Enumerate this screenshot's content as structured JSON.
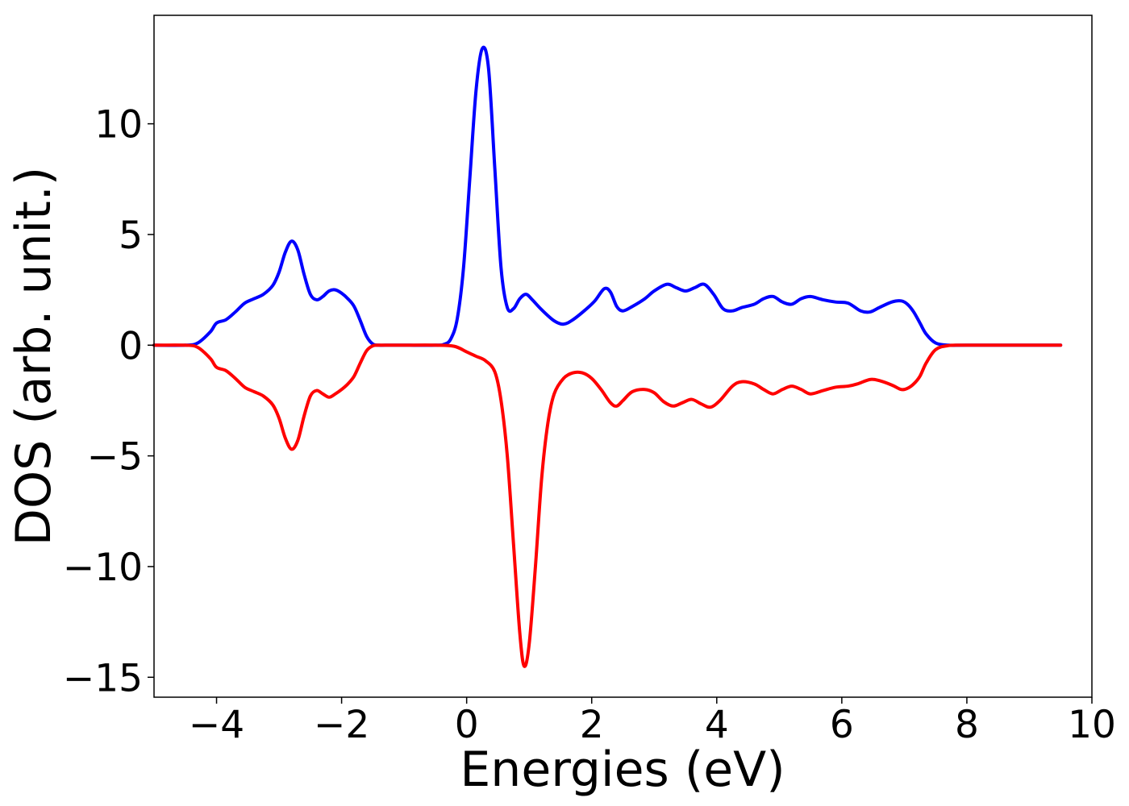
{
  "chart_data": {
    "type": "line",
    "title": "",
    "xlabel": "Energies (eV)",
    "ylabel": "DOS (arb. unit.)",
    "xlim": [
      -5,
      10
    ],
    "ylim": [
      -15.9,
      14.9
    ],
    "xticks": [
      -4,
      -2,
      0,
      2,
      4,
      6,
      8,
      10
    ],
    "xtick_labels": [
      "−4",
      "−2",
      "0",
      "2",
      "4",
      "6",
      "8",
      "10"
    ],
    "yticks": [
      10,
      5,
      0,
      -5,
      -10,
      -15
    ],
    "ytick_labels": [
      "10",
      "5",
      "0",
      "−5",
      "−10",
      "−15"
    ],
    "grid": false,
    "series": [
      {
        "color": "#0000ff",
        "x": [
          -5.0,
          -4.5,
          -4.3,
          -4.1,
          -4.0,
          -3.85,
          -3.7,
          -3.55,
          -3.4,
          -3.25,
          -3.1,
          -3.0,
          -2.9,
          -2.8,
          -2.7,
          -2.6,
          -2.5,
          -2.4,
          -2.3,
          -2.2,
          -2.1,
          -2.0,
          -1.9,
          -1.8,
          -1.7,
          -1.6,
          -1.5,
          -1.4,
          -1.3,
          -1.0,
          -0.5,
          -0.35,
          -0.25,
          -0.15,
          -0.05,
          0.05,
          0.15,
          0.25,
          0.35,
          0.45,
          0.55,
          0.65,
          0.75,
          0.85,
          0.95,
          1.05,
          1.2,
          1.4,
          1.55,
          1.7,
          1.9,
          2.05,
          2.2,
          2.3,
          2.4,
          2.5,
          2.65,
          2.85,
          3.0,
          3.2,
          3.35,
          3.5,
          3.65,
          3.8,
          3.95,
          4.1,
          4.25,
          4.4,
          4.6,
          4.75,
          4.9,
          5.05,
          5.2,
          5.35,
          5.5,
          5.7,
          5.9,
          6.1,
          6.3,
          6.45,
          6.6,
          6.8,
          6.95,
          7.05,
          7.15,
          7.25,
          7.35,
          7.5,
          7.7,
          8.0,
          9.0,
          9.5
        ],
        "y": [
          0.0,
          0.0,
          0.1,
          0.6,
          1.0,
          1.15,
          1.5,
          1.9,
          2.1,
          2.3,
          2.7,
          3.3,
          4.2,
          4.7,
          4.3,
          3.2,
          2.3,
          2.05,
          2.2,
          2.45,
          2.5,
          2.35,
          2.1,
          1.75,
          1.1,
          0.4,
          0.05,
          0.0,
          0.0,
          0.0,
          0.0,
          0.05,
          0.3,
          1.2,
          3.5,
          7.5,
          11.5,
          13.4,
          12.5,
          8.0,
          3.5,
          1.7,
          1.65,
          2.1,
          2.3,
          2.05,
          1.6,
          1.1,
          0.95,
          1.15,
          1.6,
          2.0,
          2.55,
          2.4,
          1.75,
          1.55,
          1.75,
          2.1,
          2.45,
          2.75,
          2.6,
          2.45,
          2.6,
          2.75,
          2.3,
          1.65,
          1.55,
          1.7,
          1.85,
          2.1,
          2.2,
          1.95,
          1.85,
          2.1,
          2.2,
          2.05,
          1.95,
          1.9,
          1.55,
          1.5,
          1.7,
          1.95,
          2.0,
          1.85,
          1.5,
          1.0,
          0.5,
          0.1,
          0.0,
          0.0,
          0.0,
          0.0
        ]
      },
      {
        "color": "#ff0000",
        "x": [
          -5.0,
          -4.5,
          -4.3,
          -4.1,
          -4.0,
          -3.85,
          -3.7,
          -3.55,
          -3.4,
          -3.25,
          -3.1,
          -3.0,
          -2.9,
          -2.8,
          -2.7,
          -2.6,
          -2.5,
          -2.4,
          -2.3,
          -2.2,
          -2.1,
          -2.0,
          -1.9,
          -1.8,
          -1.7,
          -1.6,
          -1.5,
          -1.4,
          -1.3,
          -1.0,
          -0.5,
          -0.2,
          0.0,
          0.15,
          0.3,
          0.45,
          0.55,
          0.65,
          0.75,
          0.85,
          0.92,
          1.0,
          1.1,
          1.2,
          1.3,
          1.4,
          1.55,
          1.7,
          1.85,
          2.0,
          2.15,
          2.3,
          2.4,
          2.5,
          2.65,
          2.85,
          3.0,
          3.15,
          3.3,
          3.45,
          3.6,
          3.75,
          3.9,
          4.05,
          4.25,
          4.4,
          4.6,
          4.75,
          4.9,
          5.05,
          5.2,
          5.35,
          5.5,
          5.7,
          5.9,
          6.1,
          6.25,
          6.45,
          6.6,
          6.8,
          6.95,
          7.05,
          7.15,
          7.25,
          7.35,
          7.5,
          7.7,
          8.0,
          9.0,
          9.5
        ],
        "y": [
          0.0,
          0.0,
          -0.1,
          -0.6,
          -1.0,
          -1.15,
          -1.5,
          -1.9,
          -2.1,
          -2.3,
          -2.7,
          -3.3,
          -4.2,
          -4.7,
          -4.3,
          -3.2,
          -2.3,
          -2.05,
          -2.2,
          -2.35,
          -2.2,
          -2.0,
          -1.75,
          -1.4,
          -0.8,
          -0.25,
          -0.03,
          0.0,
          0.0,
          0.0,
          0.0,
          -0.05,
          -0.3,
          -0.5,
          -0.7,
          -1.2,
          -2.5,
          -5.0,
          -9.0,
          -13.0,
          -14.5,
          -13.5,
          -10.0,
          -6.0,
          -3.5,
          -2.2,
          -1.5,
          -1.25,
          -1.25,
          -1.5,
          -2.0,
          -2.6,
          -2.75,
          -2.5,
          -2.1,
          -2.0,
          -2.15,
          -2.55,
          -2.75,
          -2.6,
          -2.45,
          -2.65,
          -2.8,
          -2.5,
          -1.85,
          -1.65,
          -1.75,
          -2.0,
          -2.2,
          -2.0,
          -1.85,
          -2.0,
          -2.2,
          -2.05,
          -1.9,
          -1.85,
          -1.75,
          -1.55,
          -1.6,
          -1.8,
          -2.0,
          -1.95,
          -1.75,
          -1.4,
          -0.8,
          -0.2,
          -0.02,
          0.0,
          0.0,
          0.0
        ]
      }
    ]
  }
}
